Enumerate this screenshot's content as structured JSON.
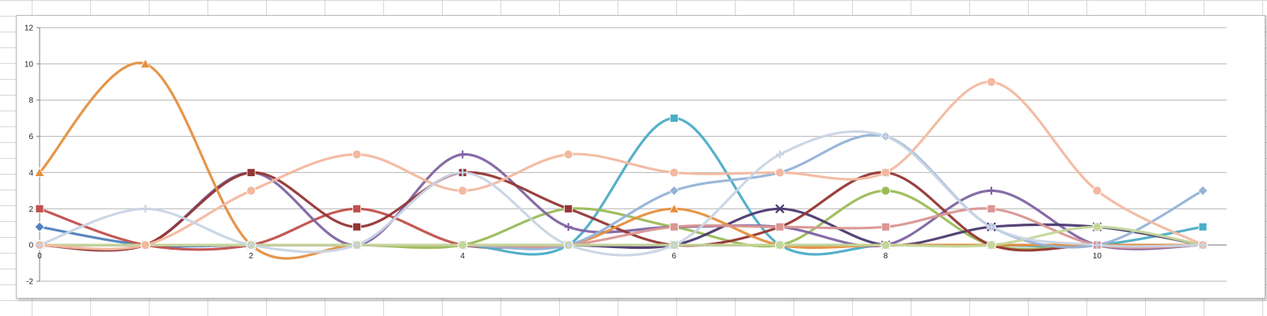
{
  "chart_data": {
    "type": "line",
    "title": "",
    "xlabel": "",
    "ylabel": "",
    "xlim": [
      0,
      11
    ],
    "ylim": [
      -2,
      12
    ],
    "x_ticks": [
      0,
      2,
      4,
      6,
      8,
      10
    ],
    "y_ticks": [
      -2,
      0,
      2,
      4,
      6,
      8,
      10,
      12
    ],
    "x_tick_labels": [
      "0",
      "2",
      "4",
      "6",
      "8",
      "10"
    ],
    "y_tick_labels": [
      "-2",
      "0",
      "2",
      "4",
      "6",
      "8",
      "10",
      "12"
    ],
    "grid": "horizontal",
    "smooth": true,
    "legend": "none",
    "x": [
      0,
      1,
      2,
      3,
      4,
      5,
      6,
      7,
      8,
      9,
      10,
      11
    ],
    "series": [
      {
        "color": "#4f81bd",
        "marker": "diamond",
        "values": [
          1,
          0,
          0,
          0,
          0,
          0,
          0,
          0,
          0,
          0,
          0,
          0
        ]
      },
      {
        "color": "#c0504d",
        "marker": "square",
        "values": [
          2,
          0,
          0,
          2,
          0,
          0,
          0,
          0,
          0,
          0,
          0,
          0
        ]
      },
      {
        "color": "#4bacc6",
        "marker": "square",
        "values": [
          0,
          0,
          0,
          0,
          0,
          0,
          7,
          0,
          0,
          0,
          0,
          1
        ]
      },
      {
        "color": "#9bbb59",
        "marker": "circle",
        "values": [
          0,
          0,
          0,
          0,
          0,
          2,
          1,
          0,
          3,
          0,
          0,
          0
        ]
      },
      {
        "color": "#8064a2",
        "marker": "plus",
        "values": [
          0,
          0,
          4,
          0,
          5,
          1,
          1,
          1,
          0,
          3,
          0,
          0
        ]
      },
      {
        "color": "#4b3a70",
        "marker": "x",
        "values": [
          0,
          0,
          0,
          0,
          0,
          0,
          0,
          2,
          0,
          1,
          1,
          0
        ]
      },
      {
        "color": "#943634",
        "marker": "square",
        "values": [
          0,
          0,
          4,
          1,
          4,
          2,
          0,
          1,
          4,
          0,
          0,
          0
        ]
      },
      {
        "color": "#e58f3f",
        "marker": "triangle",
        "values": [
          4,
          10,
          0,
          0,
          0,
          0,
          2,
          0,
          0,
          0,
          0,
          0
        ]
      },
      {
        "color": "#95b3d7",
        "marker": "diamond",
        "values": [
          0,
          0,
          0,
          0,
          0,
          0,
          3,
          4,
          6,
          1,
          0,
          3
        ]
      },
      {
        "color": "#d99694",
        "marker": "square",
        "values": [
          0,
          0,
          0,
          0,
          0,
          0,
          1,
          1,
          1,
          2,
          0,
          0
        ]
      },
      {
        "color": "#c4d79b",
        "marker": "circle",
        "values": [
          0,
          0,
          0,
          0,
          0,
          0,
          0,
          0,
          0,
          0,
          1,
          0
        ]
      },
      {
        "color": "#f2b9a0",
        "marker": "circle",
        "values": [
          0,
          0,
          3,
          5,
          3,
          5,
          4,
          4,
          4,
          9,
          3,
          0
        ]
      },
      {
        "color": "#c9d4e4",
        "marker": "plus",
        "values": [
          0,
          2,
          0,
          0,
          4,
          0,
          0,
          5,
          6,
          1,
          0,
          0
        ]
      }
    ]
  }
}
